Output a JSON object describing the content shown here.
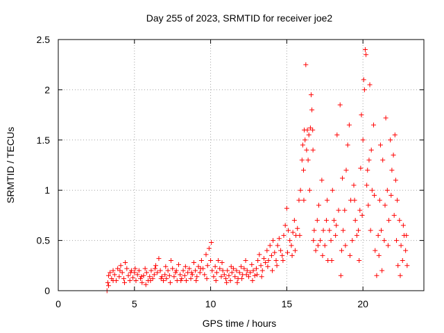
{
  "chart_data": {
    "type": "scatter",
    "title": "Day 255 of 2023, SRMTID for receiver joe2",
    "xlabel": "GPS time / hours",
    "ylabel": "SRMTID / TECUs",
    "xlim": [
      0,
      24
    ],
    "ylim": [
      0,
      2.5
    ],
    "xticks": [
      "0",
      "5",
      "10",
      "15",
      "20"
    ],
    "yticks": [
      "0",
      "0.5",
      "1",
      "1.5",
      "2",
      "2.5"
    ],
    "grid": true,
    "marker": "+",
    "color": "#ff0000",
    "series": [
      {
        "name": "SRMTID",
        "points": [
          [
            3.2,
            0.0
          ],
          [
            3.25,
            0.08
          ],
          [
            3.3,
            0.15
          ],
          [
            3.4,
            0.18
          ],
          [
            3.5,
            0.12
          ],
          [
            3.6,
            0.2
          ],
          [
            3.7,
            0.16
          ],
          [
            3.8,
            0.1
          ],
          [
            3.9,
            0.22
          ],
          [
            4.0,
            0.14
          ],
          [
            4.1,
            0.25
          ],
          [
            4.2,
            0.18
          ],
          [
            4.3,
            0.12
          ],
          [
            4.4,
            0.28
          ],
          [
            4.5,
            0.22
          ],
          [
            4.6,
            0.15
          ],
          [
            4.7,
            0.1
          ],
          [
            4.8,
            0.2
          ],
          [
            4.9,
            0.13
          ],
          [
            5.0,
            0.18
          ],
          [
            5.1,
            0.1
          ],
          [
            5.2,
            0.16
          ],
          [
            5.3,
            0.2
          ],
          [
            5.4,
            0.12
          ],
          [
            5.5,
            0.08
          ],
          [
            5.6,
            0.15
          ],
          [
            5.7,
            0.22
          ],
          [
            5.8,
            0.18
          ],
          [
            5.9,
            0.1
          ],
          [
            6.0,
            0.14
          ],
          [
            6.1,
            0.2
          ],
          [
            6.2,
            0.12
          ],
          [
            6.3,
            0.16
          ],
          [
            6.4,
            0.25
          ],
          [
            6.5,
            0.18
          ],
          [
            6.6,
            0.32
          ],
          [
            6.7,
            0.2
          ],
          [
            6.8,
            0.14
          ],
          [
            6.9,
            0.1
          ],
          [
            7.0,
            0.16
          ],
          [
            7.1,
            0.12
          ],
          [
            7.2,
            0.2
          ],
          [
            7.3,
            0.15
          ],
          [
            7.4,
            0.3
          ],
          [
            7.5,
            0.22
          ],
          [
            7.6,
            0.14
          ],
          [
            7.7,
            0.18
          ],
          [
            7.8,
            0.1
          ],
          [
            7.9,
            0.26
          ],
          [
            8.0,
            0.16
          ],
          [
            8.1,
            0.12
          ],
          [
            8.2,
            0.2
          ],
          [
            8.3,
            0.15
          ],
          [
            8.4,
            0.1
          ],
          [
            8.5,
            0.18
          ],
          [
            8.6,
            0.22
          ],
          [
            8.7,
            0.12
          ],
          [
            8.8,
            0.16
          ],
          [
            8.9,
            0.28
          ],
          [
            9.0,
            0.2
          ],
          [
            9.1,
            0.14
          ],
          [
            9.2,
            0.24
          ],
          [
            9.3,
            0.18
          ],
          [
            9.4,
            0.3
          ],
          [
            9.5,
            0.22
          ],
          [
            9.6,
            0.16
          ],
          [
            9.7,
            0.36
          ],
          [
            9.8,
            0.25
          ],
          [
            9.9,
            0.42
          ],
          [
            10.0,
            0.3
          ],
          [
            10.1,
            0.2
          ],
          [
            10.2,
            0.14
          ],
          [
            10.3,
            0.24
          ],
          [
            10.4,
            0.18
          ],
          [
            10.5,
            0.3
          ],
          [
            10.6,
            0.22
          ],
          [
            10.7,
            0.14
          ],
          [
            10.8,
            0.2
          ],
          [
            10.9,
            0.16
          ],
          [
            11.0,
            0.12
          ],
          [
            11.1,
            0.2
          ],
          [
            11.2,
            0.15
          ],
          [
            11.3,
            0.1
          ],
          [
            11.4,
            0.18
          ],
          [
            11.5,
            0.22
          ],
          [
            11.6,
            0.14
          ],
          [
            11.7,
            0.2
          ],
          [
            11.8,
            0.12
          ],
          [
            11.9,
            0.18
          ],
          [
            12.0,
            0.24
          ],
          [
            12.1,
            0.16
          ],
          [
            12.2,
            0.22
          ],
          [
            12.3,
            0.3
          ],
          [
            12.4,
            0.2
          ],
          [
            12.5,
            0.14
          ],
          [
            12.6,
            0.18
          ],
          [
            12.7,
            0.26
          ],
          [
            12.8,
            0.2
          ],
          [
            12.9,
            0.15
          ],
          [
            13.0,
            0.22
          ],
          [
            13.1,
            0.3
          ],
          [
            13.2,
            0.36
          ],
          [
            13.3,
            0.25
          ],
          [
            13.4,
            0.2
          ],
          [
            13.5,
            0.32
          ],
          [
            13.6,
            0.28
          ],
          [
            13.7,
            0.4
          ],
          [
            13.8,
            0.3
          ],
          [
            13.9,
            0.45
          ],
          [
            14.0,
            0.35
          ],
          [
            14.1,
            0.5
          ],
          [
            14.2,
            0.38
          ],
          [
            14.3,
            0.3
          ],
          [
            14.4,
            0.45
          ],
          [
            14.5,
            0.52
          ],
          [
            14.6,
            0.4
          ],
          [
            14.7,
            0.35
          ],
          [
            14.8,
            0.55
          ],
          [
            14.9,
            0.65
          ],
          [
            15.0,
            0.82
          ],
          [
            15.1,
            0.6
          ],
          [
            15.2,
            0.5
          ],
          [
            15.3,
            0.45
          ],
          [
            15.4,
            0.58
          ],
          [
            15.5,
            0.7
          ],
          [
            15.6,
            0.55
          ],
          [
            15.7,
            0.62
          ],
          [
            15.8,
            0.9
          ],
          [
            15.9,
            1.0
          ],
          [
            16.0,
            1.3
          ],
          [
            16.05,
            1.45
          ],
          [
            16.1,
            1.2
          ],
          [
            16.15,
            1.6
          ],
          [
            16.2,
            1.5
          ],
          [
            16.25,
            2.25
          ],
          [
            16.3,
            1.4
          ],
          [
            16.35,
            1.6
          ],
          [
            16.4,
            1.3
          ],
          [
            16.5,
            1.0
          ],
          [
            16.6,
            1.95
          ],
          [
            16.65,
            1.8
          ],
          [
            16.7,
            1.6
          ],
          [
            16.75,
            0.5
          ],
          [
            16.8,
            0.6
          ],
          [
            16.9,
            0.4
          ],
          [
            17.0,
            0.7
          ],
          [
            17.1,
            0.85
          ],
          [
            17.2,
            0.5
          ],
          [
            17.3,
            1.1
          ],
          [
            17.4,
            0.6
          ],
          [
            17.5,
            0.45
          ],
          [
            17.6,
            0.7
          ],
          [
            17.7,
            0.3
          ],
          [
            17.8,
            0.6
          ],
          [
            17.9,
            0.5
          ],
          [
            18.0,
            1.0
          ],
          [
            18.1,
            0.7
          ],
          [
            18.2,
            0.55
          ],
          [
            18.3,
            1.55
          ],
          [
            18.4,
            0.8
          ],
          [
            18.5,
            1.85
          ],
          [
            18.6,
            0.4
          ],
          [
            18.7,
            0.6
          ],
          [
            18.8,
            0.8
          ],
          [
            18.9,
            1.2
          ],
          [
            19.0,
            1.45
          ],
          [
            19.1,
            1.65
          ],
          [
            19.2,
            0.9
          ],
          [
            19.3,
            0.5
          ],
          [
            19.4,
            1.05
          ],
          [
            19.5,
            0.7
          ],
          [
            19.6,
            0.55
          ],
          [
            19.7,
            0.6
          ],
          [
            19.8,
            0.8
          ],
          [
            19.9,
            1.75
          ],
          [
            20.0,
            1.5
          ],
          [
            20.05,
            2.1
          ],
          [
            20.1,
            2.0
          ],
          [
            20.15,
            2.4
          ],
          [
            20.2,
            2.35
          ],
          [
            20.25,
            1.05
          ],
          [
            20.3,
            1.2
          ],
          [
            20.4,
            1.3
          ],
          [
            20.5,
            0.6
          ],
          [
            20.6,
            1.0
          ],
          [
            20.7,
            1.65
          ],
          [
            20.8,
            0.4
          ],
          [
            20.9,
            0.15
          ],
          [
            21.0,
            0.55
          ],
          [
            21.1,
            0.9
          ],
          [
            21.2,
            0.6
          ],
          [
            21.3,
            1.3
          ],
          [
            21.4,
            0.5
          ],
          [
            21.5,
            1.72
          ],
          [
            21.6,
            1.0
          ],
          [
            21.7,
            0.7
          ],
          [
            21.8,
            1.5
          ],
          [
            21.9,
            1.2
          ],
          [
            22.0,
            1.35
          ],
          [
            22.1,
            1.55
          ],
          [
            22.2,
            0.5
          ],
          [
            22.3,
            0.25
          ],
          [
            22.4,
            0.7
          ],
          [
            22.5,
            0.45
          ],
          [
            22.6,
            0.3
          ],
          [
            22.7,
            0.55
          ],
          [
            22.8,
            0.4
          ],
          [
            22.9,
            0.25
          ],
          [
            3.3,
            0.05
          ],
          [
            3.6,
            0.1
          ],
          [
            4.05,
            0.2
          ],
          [
            4.35,
            0.08
          ],
          [
            4.75,
            0.18
          ],
          [
            5.05,
            0.22
          ],
          [
            5.45,
            0.14
          ],
          [
            5.75,
            0.06
          ],
          [
            6.05,
            0.1
          ],
          [
            6.35,
            0.22
          ],
          [
            6.75,
            0.12
          ],
          [
            7.05,
            0.24
          ],
          [
            7.35,
            0.08
          ],
          [
            7.75,
            0.2
          ],
          [
            8.05,
            0.1
          ],
          [
            8.35,
            0.24
          ],
          [
            8.75,
            0.18
          ],
          [
            9.05,
            0.1
          ],
          [
            9.35,
            0.22
          ],
          [
            9.75,
            0.12
          ],
          [
            10.05,
            0.48
          ],
          [
            10.35,
            0.1
          ],
          [
            10.75,
            0.28
          ],
          [
            11.05,
            0.08
          ],
          [
            11.35,
            0.24
          ],
          [
            11.75,
            0.08
          ],
          [
            12.05,
            0.12
          ],
          [
            12.35,
            0.16
          ],
          [
            12.75,
            0.1
          ],
          [
            13.05,
            0.16
          ],
          [
            13.35,
            0.14
          ],
          [
            13.75,
            0.24
          ],
          [
            14.05,
            0.2
          ],
          [
            14.35,
            0.25
          ],
          [
            14.75,
            0.3
          ],
          [
            15.05,
            0.38
          ],
          [
            15.35,
            0.35
          ],
          [
            15.55,
            0.4
          ],
          [
            15.85,
            0.55
          ],
          [
            16.12,
            0.9
          ],
          [
            16.45,
            1.55
          ],
          [
            16.72,
            1.4
          ],
          [
            17.05,
            0.45
          ],
          [
            17.35,
            0.35
          ],
          [
            17.65,
            0.9
          ],
          [
            17.95,
            0.3
          ],
          [
            18.25,
            0.65
          ],
          [
            18.55,
            0.15
          ],
          [
            18.85,
            0.45
          ],
          [
            19.15,
            0.35
          ],
          [
            19.45,
            0.9
          ],
          [
            19.75,
            0.3
          ],
          [
            19.95,
            0.75
          ],
          [
            20.35,
            0.85
          ],
          [
            20.55,
            1.4
          ],
          [
            20.75,
            0.95
          ],
          [
            21.05,
            0.35
          ],
          [
            21.25,
            0.2
          ],
          [
            21.45,
            0.85
          ],
          [
            21.65,
            0.45
          ],
          [
            21.85,
            0.95
          ],
          [
            22.05,
            0.75
          ],
          [
            22.25,
            0.9
          ],
          [
            22.45,
            0.15
          ],
          [
            22.65,
            0.65
          ],
          [
            22.85,
            0.55
          ],
          [
            16.55,
            1.62
          ],
          [
            18.65,
            1.12
          ],
          [
            19.85,
            1.22
          ],
          [
            20.45,
            2.05
          ],
          [
            21.15,
            1.45
          ],
          [
            22.15,
            1.1
          ]
        ]
      }
    ]
  }
}
